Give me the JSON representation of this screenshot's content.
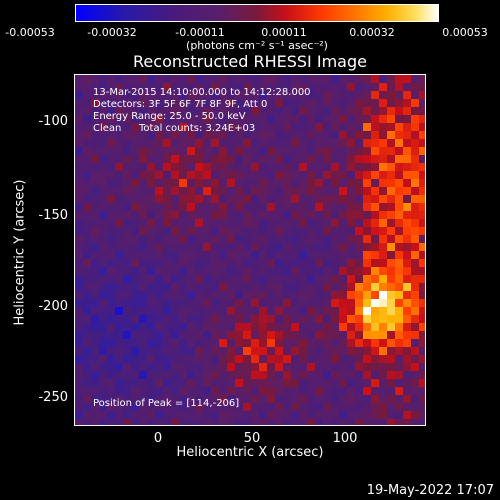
{
  "colorbar": {
    "ticks": [
      "-0.00053",
      "-0.00032",
      "-0.00011",
      "0.00011",
      "0.00032",
      "0.00053"
    ],
    "units": "(photons cm⁻² s⁻¹ asec⁻²)",
    "range": [
      -0.00053,
      0.00053
    ]
  },
  "chart_data": {
    "type": "heatmap",
    "title": "Reconstructed RHESSI Image",
    "xlabel": "Heliocentric X (arcsec)",
    "ylabel": "Heliocentric Y (arcsec)",
    "xlim": [
      -45,
      145
    ],
    "ylim": [
      -265,
      -82
    ],
    "xticks": [
      "0",
      "50",
      "100"
    ],
    "xtick_values": [
      0,
      50,
      100
    ],
    "yticks": [
      "-100",
      "-150",
      "-200",
      "-250"
    ],
    "ytick_values": [
      -100,
      -150,
      -200,
      -250
    ],
    "annotations": {
      "time": "13-Mar-2015 14:10:00.000 to 14:12:28.000",
      "detectors": "Detectors: 3F 5F 6F 7F 8F 9F, Att 0",
      "energy": "Energy Range: 25.0 - 50.0 keV",
      "clean": "Clean",
      "counts": "Total counts: 3.24E+03",
      "peak": "Position of Peak = [114,-206]"
    },
    "peak": [
      114,
      -206
    ]
  },
  "timestamp": "19-May-2022 17:07"
}
